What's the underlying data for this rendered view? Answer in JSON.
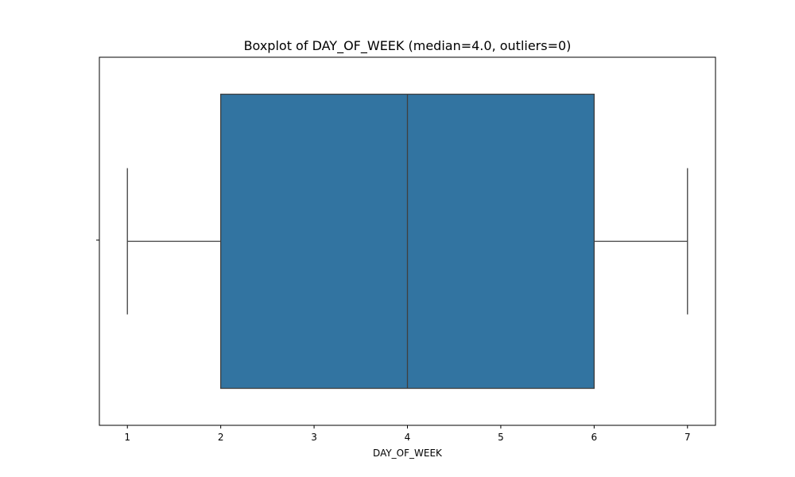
{
  "chart_data": {
    "type": "boxplot",
    "title": "Boxplot of DAY_OF_WEEK (median=4.0, outliers=0)",
    "xlabel": "DAY_OF_WEEK",
    "ylabel": "",
    "orientation": "horizontal",
    "xlim": [
      0.7,
      7.3
    ],
    "x_ticks": [
      "1",
      "2",
      "3",
      "4",
      "5",
      "6",
      "7"
    ],
    "box": {
      "whisker_low": 1,
      "q1": 2,
      "median": 4,
      "q3": 6,
      "whisker_high": 7,
      "outliers": []
    },
    "colors": {
      "box_fill": "#3274a1",
      "line": "#3f3f3f",
      "frame": "#000000"
    }
  }
}
